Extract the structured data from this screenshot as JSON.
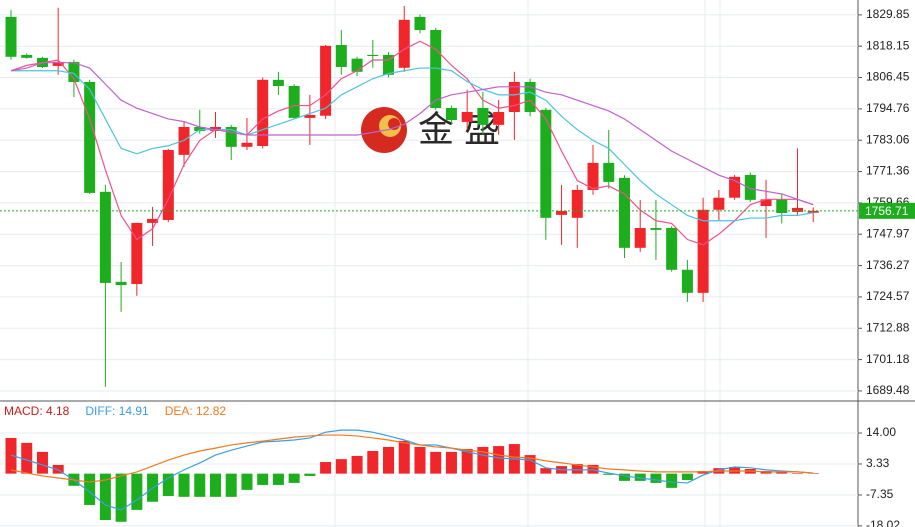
{
  "chart_data": [
    {
      "type": "candlestick",
      "up_color": "#f0262a",
      "down_color": "#1cae1c",
      "open": [
        1829.1,
        1814.9,
        1813.8,
        1810.8,
        1812.3,
        1804.8,
        1763.8,
        1730.2,
        1729.4,
        1752.2,
        1753.3,
        1777.6,
        1788.0,
        1786.5,
        1788.0,
        1780.6,
        1780.9,
        1805.6,
        1803.3,
        1791.4,
        1792.2,
        1818.6,
        1813.5,
        1814.9,
        1814.9,
        1810.1,
        1829.1,
        1824.2,
        1795.1,
        1789.9,
        1795.1,
        1788.8,
        1793.6,
        1804.8,
        1794.4,
        1755.2,
        1754.1,
        1764.5,
        1774.6,
        1769.0,
        1742.9,
        1750.3,
        1750.3,
        1734.7,
        1726.1,
        1757.1,
        1761.6,
        1770.1,
        1758.5,
        1761.0,
        1756.3,
        1756.0
      ],
      "high": [
        1831.7,
        1815.5,
        1814.2,
        1832.5,
        1813.1,
        1805.6,
        1766.4,
        1737.6,
        1752.2,
        1758.2,
        1779.8,
        1789.9,
        1794.4,
        1793.6,
        1788.8,
        1791.4,
        1806.5,
        1808.6,
        1804.0,
        1800.0,
        1818.6,
        1824.2,
        1814.2,
        1820.5,
        1816.0,
        1833.2,
        1830.0,
        1825.0,
        1796.0,
        1801.9,
        1801.1,
        1798.1,
        1808.6,
        1806.0,
        1795.1,
        1766.4,
        1766.4,
        1781.3,
        1786.9,
        1770.0,
        1760.8,
        1760.8,
        1751.0,
        1738.4,
        1761.6,
        1764.5,
        1770.1,
        1771.0,
        1768.3,
        1763.0,
        1780.0,
        1758.0
      ],
      "low": [
        1813.1,
        1813.5,
        1810.0,
        1807.5,
        1799.2,
        1763.0,
        1691.0,
        1719.0,
        1725.0,
        1743.6,
        1752.5,
        1773.1,
        1785.5,
        1783.9,
        1775.7,
        1779.4,
        1780.0,
        1800.0,
        1791.0,
        1781.3,
        1791.0,
        1807.5,
        1807.0,
        1810.1,
        1806.5,
        1808.6,
        1823.0,
        1794.4,
        1789.0,
        1786.9,
        1785.1,
        1785.1,
        1783.2,
        1792.0,
        1745.9,
        1744.0,
        1742.9,
        1762.7,
        1765.0,
        1739.1,
        1741.4,
        1738.4,
        1734.0,
        1722.7,
        1722.7,
        1753.3,
        1760.8,
        1760.0,
        1746.6,
        1752.0,
        1755.0,
        1752.5
      ],
      "close": [
        1814.2,
        1813.8,
        1810.4,
        1812.3,
        1804.8,
        1763.4,
        1729.8,
        1729.0,
        1752.2,
        1753.7,
        1779.4,
        1788.0,
        1786.5,
        1788.0,
        1780.6,
        1782.1,
        1805.6,
        1803.3,
        1791.4,
        1792.5,
        1818.3,
        1810.4,
        1808.6,
        1814.5,
        1807.5,
        1828.0,
        1824.2,
        1795.1,
        1790.6,
        1793.6,
        1788.8,
        1793.6,
        1804.8,
        1793.6,
        1754.1,
        1756.7,
        1764.5,
        1774.6,
        1767.5,
        1742.9,
        1750.3,
        1749.6,
        1734.7,
        1726.1,
        1757.1,
        1761.6,
        1769.4,
        1760.8,
        1761.0,
        1755.9,
        1757.8,
        1756.71
      ],
      "lines": [
        {
          "color": "#f0508c",
          "values": [
            1809,
            1811,
            1812,
            1813,
            1806,
            1791,
            1772,
            1755,
            1746,
            1750,
            1761,
            1774,
            1783,
            1787,
            1787,
            1785,
            1791,
            1794,
            1796,
            1796,
            1800,
            1806,
            1809,
            1813,
            1813,
            1817,
            1820,
            1817,
            1811,
            1806,
            1798,
            1795,
            1796,
            1798,
            1791,
            1779,
            1768,
            1765,
            1766,
            1763,
            1757,
            1753,
            1752,
            1746,
            1744,
            1748,
            1753,
            1759,
            1761,
            1761,
            1761,
            1759
          ]
        },
        {
          "color": "#4cc4dc",
          "values": [
            1809,
            1809,
            1809,
            1809,
            1808,
            1802,
            1791,
            1780,
            1778,
            1780,
            1781,
            1783,
            1787,
            1787,
            1787,
            1785,
            1787,
            1789,
            1791,
            1793,
            1795,
            1800,
            1803,
            1806,
            1808,
            1809,
            1810,
            1810,
            1809,
            1805,
            1802,
            1800,
            1800,
            1801,
            1798,
            1792,
            1787,
            1783,
            1780,
            1774,
            1768,
            1763,
            1759,
            1755,
            1753,
            1753,
            1753,
            1754,
            1754,
            1755,
            1755,
            1756
          ]
        },
        {
          "color": "#c060d0",
          "values": [
            1809,
            1810,
            1812,
            1812,
            1812,
            1810,
            1804,
            1798,
            1795,
            1793,
            1791,
            1790,
            1788,
            1787,
            1786,
            1785,
            1785,
            1785,
            1785,
            1785,
            1785,
            1785,
            1785,
            1786,
            1787,
            1789,
            1793,
            1798,
            1800,
            1801,
            1802,
            1803,
            1803,
            1803,
            1801,
            1800,
            1798,
            1796,
            1794,
            1791,
            1787,
            1783,
            1779,
            1776,
            1773,
            1770,
            1768,
            1765,
            1764,
            1763,
            1761,
            1759
          ]
        }
      ],
      "ylim": [
        1686.1,
        1835.4
      ],
      "yticks": [
        1829.85,
        1818.15,
        1806.45,
        1794.76,
        1783.06,
        1771.36,
        1759.66,
        1747.97,
        1736.27,
        1724.57,
        1712.88,
        1701.18,
        1689.48
      ],
      "grid": true,
      "last_price": 1756.71,
      "last_price_color": "#1cae1c",
      "watermark": "金 盛"
    },
    {
      "type": "macd",
      "legend": [
        {
          "label": "MACD: 4.18",
          "color": "#d01818"
        },
        {
          "label": "DIFF: 14.91",
          "color": "#3a9ee6"
        },
        {
          "label": "DEA: 12.82",
          "color": "#f07a20"
        }
      ],
      "up_color": "#f0262a",
      "down_color": "#1cae1c",
      "histogram": [
        12.3,
        10.6,
        7.5,
        3.0,
        -4.2,
        -10.8,
        -16.0,
        -16.6,
        -12.5,
        -9.7,
        -7.7,
        -8.0,
        -8.0,
        -8.0,
        -8.0,
        -5.6,
        -3.9,
        -3.9,
        -3.2,
        -0.8,
        4.0,
        5.0,
        6.1,
        7.8,
        9.2,
        11.3,
        9.2,
        7.5,
        7.5,
        8.5,
        9.2,
        9.5,
        10.2,
        6.4,
        1.9,
        2.6,
        3.3,
        3.0,
        -0.4,
        -2.5,
        -2.5,
        -3.2,
        -4.9,
        -2.2,
        0.9,
        1.9,
        2.3,
        1.6,
        0.9,
        0.6,
        0.2,
        0.2
      ],
      "series": [
        {
          "color": "#3a9ee6",
          "values": [
            6.4,
            4.7,
            3.0,
            1.3,
            -2.2,
            -6.3,
            -10.8,
            -12.5,
            -9.1,
            -5.0,
            -1.5,
            1.3,
            3.7,
            6.4,
            8.1,
            9.5,
            10.9,
            11.2,
            11.6,
            12.3,
            14.3,
            15.0,
            15.0,
            14.3,
            13.0,
            11.6,
            9.9,
            9.9,
            8.8,
            7.5,
            6.4,
            5.4,
            5.1,
            4.7,
            2.0,
            1.3,
            1.3,
            1.3,
            0.2,
            -0.8,
            -1.5,
            -2.2,
            -2.9,
            -3.2,
            -0.5,
            1.3,
            2.3,
            2.0,
            1.3,
            0.9,
            0.6,
            0.2
          ]
        },
        {
          "color": "#f07a20",
          "values": [
            1.3,
            0.2,
            -0.8,
            -1.5,
            -2.2,
            -2.9,
            -2.2,
            -0.8,
            0.6,
            2.6,
            4.7,
            6.4,
            7.8,
            8.8,
            9.9,
            10.6,
            11.2,
            11.9,
            12.6,
            13.0,
            13.3,
            13.3,
            13.0,
            12.3,
            11.6,
            10.6,
            9.9,
            9.2,
            8.8,
            8.1,
            7.5,
            6.4,
            5.7,
            5.4,
            4.4,
            3.7,
            3.0,
            2.3,
            1.6,
            1.3,
            0.9,
            0.6,
            0.6,
            0.6,
            0.6,
            0.9,
            0.9,
            0.9,
            0.6,
            0.6,
            0.6,
            0.2
          ]
        }
      ],
      "ylim": [
        -18.4,
        24.7
      ],
      "yticks": [
        {
          "value": 14,
          "label": "14.00"
        },
        3.33,
        -7.35,
        -18.02
      ],
      "grid": true
    }
  ]
}
